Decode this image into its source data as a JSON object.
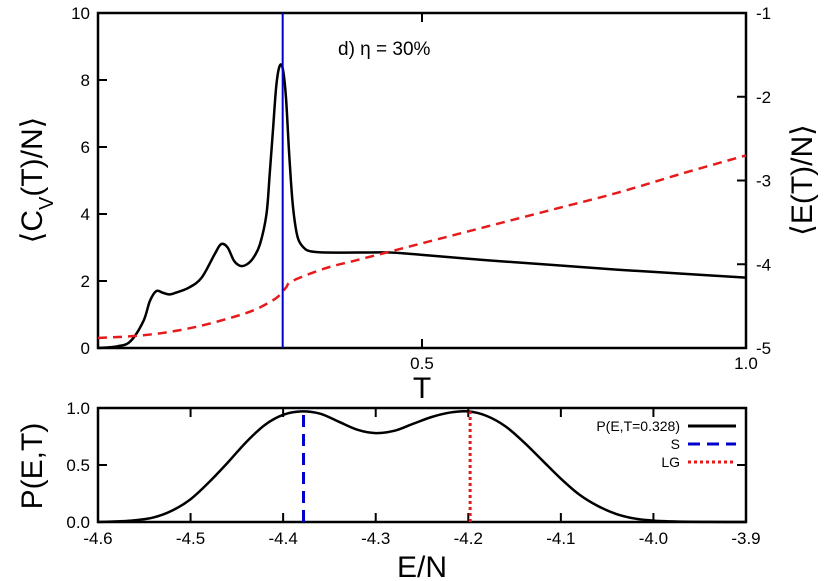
{
  "chart_data": [
    {
      "type": "line",
      "annotation": "d) η = 30%",
      "xlabel": "T",
      "ylabel_left": "⟨C_V(T)/N⟩",
      "ylabel_right": "⟨E(T)/N⟩",
      "xlim": [
        0.0,
        1.0
      ],
      "ylim_left": [
        0,
        10
      ],
      "ylim_right": [
        -5,
        -1
      ],
      "x_ticks": [
        0.5,
        1.0
      ],
      "x_tick_labels": [
        "0.5",
        "1.0"
      ],
      "y_left_ticks": [
        0,
        2,
        4,
        6,
        8,
        10
      ],
      "y_left_tick_labels": [
        "0",
        "2",
        "4",
        "6",
        "8",
        "10"
      ],
      "y_right_ticks": [
        -5,
        -4,
        -3,
        -2,
        -1
      ],
      "y_right_tick_labels": [
        "-5",
        "-4",
        "-3",
        "-2",
        "-1"
      ],
      "vline": {
        "x": 0.285,
        "color": "#0000cc"
      },
      "series": [
        {
          "axis": "left",
          "style": "solid",
          "color": "#000000",
          "x": [
            0.0,
            0.03,
            0.05,
            0.07,
            0.08,
            0.09,
            0.1,
            0.11,
            0.12,
            0.14,
            0.16,
            0.18,
            0.19,
            0.2,
            0.21,
            0.22,
            0.23,
            0.24,
            0.25,
            0.26,
            0.265,
            0.27,
            0.275,
            0.28,
            0.285,
            0.29,
            0.295,
            0.3,
            0.305,
            0.31,
            0.32,
            0.33,
            0.35,
            0.4,
            0.45,
            0.5,
            0.6,
            0.7,
            0.8,
            0.9,
            1.0
          ],
          "y": [
            0.0,
            0.05,
            0.2,
            0.8,
            1.4,
            1.7,
            1.65,
            1.6,
            1.65,
            1.8,
            2.1,
            2.8,
            3.1,
            3.0,
            2.6,
            2.45,
            2.5,
            2.7,
            3.1,
            4.0,
            5.2,
            6.5,
            7.8,
            8.4,
            8.35,
            7.5,
            5.8,
            4.4,
            3.6,
            3.2,
            2.95,
            2.88,
            2.85,
            2.85,
            2.85,
            2.78,
            2.62,
            2.48,
            2.34,
            2.22,
            2.1
          ]
        },
        {
          "axis": "right",
          "style": "dashed",
          "color": "#e61a1a",
          "x": [
            0.0,
            0.05,
            0.1,
            0.15,
            0.2,
            0.24,
            0.27,
            0.28,
            0.29,
            0.3,
            0.35,
            0.4,
            0.45,
            0.5,
            0.6,
            0.7,
            0.8,
            0.9,
            1.0
          ],
          "y": [
            -4.88,
            -4.86,
            -4.82,
            -4.75,
            -4.65,
            -4.55,
            -4.43,
            -4.37,
            -4.28,
            -4.2,
            -4.05,
            -3.95,
            -3.85,
            -3.75,
            -3.55,
            -3.35,
            -3.15,
            -2.92,
            -2.7
          ]
        }
      ]
    },
    {
      "type": "line",
      "xlabel": "E/N",
      "ylabel": "P(E,T)",
      "xlim": [
        -4.6,
        -3.9
      ],
      "ylim": [
        0.0,
        1.0
      ],
      "x_ticks": [
        -4.6,
        -4.5,
        -4.4,
        -4.3,
        -4.2,
        -4.1,
        -4.0,
        -3.9
      ],
      "x_tick_labels": [
        "-4.6",
        "-4.5",
        "-4.4",
        "-4.3",
        "-4.2",
        "-4.1",
        "-4.0",
        "-3.9"
      ],
      "y_ticks": [
        0.0,
        0.5,
        1.0
      ],
      "y_tick_labels": [
        "0.0",
        "0.5",
        "1.0"
      ],
      "legend_position": "top-right",
      "legend": [
        {
          "label": "P(E,T=0.328)",
          "style": "solid",
          "color": "#000000"
        },
        {
          "label": "S",
          "style": "dashed",
          "color": "#0000cc"
        },
        {
          "label": "LG",
          "style": "dotted",
          "color": "#e61a1a"
        }
      ],
      "series": [
        {
          "name": "P(E,T=0.328)",
          "color": "#000000",
          "x": [
            -4.6,
            -4.58,
            -4.56,
            -4.54,
            -4.52,
            -4.5,
            -4.48,
            -4.46,
            -4.44,
            -4.42,
            -4.4,
            -4.38,
            -4.36,
            -4.34,
            -4.32,
            -4.3,
            -4.28,
            -4.26,
            -4.24,
            -4.22,
            -4.2,
            -4.18,
            -4.16,
            -4.14,
            -4.12,
            -4.1,
            -4.08,
            -4.06,
            -4.04,
            -4.02,
            -4.0,
            -3.98,
            -3.96,
            -3.94,
            -3.92,
            -3.9
          ],
          "y": [
            0.0,
            0.005,
            0.015,
            0.04,
            0.1,
            0.2,
            0.35,
            0.52,
            0.7,
            0.85,
            0.94,
            0.97,
            0.95,
            0.88,
            0.81,
            0.78,
            0.8,
            0.86,
            0.92,
            0.96,
            0.97,
            0.93,
            0.84,
            0.7,
            0.54,
            0.38,
            0.24,
            0.14,
            0.07,
            0.03,
            0.012,
            0.005,
            0.002,
            0.001,
            0.0,
            0.0
          ]
        }
      ],
      "vlines": [
        {
          "label": "S",
          "x": -4.378,
          "style": "dashed",
          "color": "#0000cc",
          "y_top": 0.97
        },
        {
          "label": "LG",
          "x": -4.198,
          "style": "dotted",
          "color": "#e61a1a",
          "y_top": 0.97
        }
      ]
    }
  ]
}
